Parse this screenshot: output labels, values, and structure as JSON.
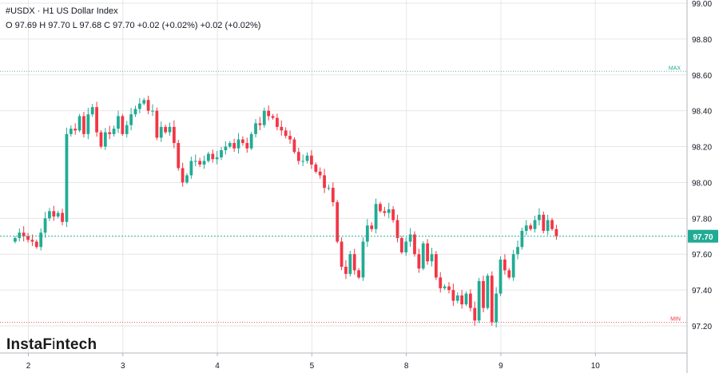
{
  "header": {
    "title": "#USDX · H1 US Dollar Index",
    "ohlc": "O 97.69 H 97.70 L 97.68 C 97.70 +0.02 (+0.02%) +0.02 (+0.02%)"
  },
  "brand": {
    "name_bold": "InstaF",
    "name_thin": "i",
    "name_rest": "ntech"
  },
  "colors": {
    "up": "#22ab94",
    "down": "#f23645",
    "grid": "#e6e6e6",
    "axis": "#b2b5be",
    "text": "#131722"
  },
  "chart_data": {
    "type": "candlestick",
    "symbol": "#USDX",
    "timeframe": "H1",
    "ylim": [
      97.12,
      99.0
    ],
    "y_ticks": [
      "99.00",
      "98.80",
      "98.60",
      "98.40",
      "98.20",
      "98.00",
      "97.80",
      "97.60",
      "97.40",
      "97.20"
    ],
    "y_tick_values": [
      99.0,
      98.8,
      98.6,
      98.4,
      98.2,
      98.0,
      97.8,
      97.6,
      97.4,
      97.2
    ],
    "x_ticks": [
      "2",
      "3",
      "4",
      "5",
      "8",
      "9",
      "10"
    ],
    "x_tick_positions": [
      2,
      3,
      4,
      5,
      6,
      7,
      8
    ],
    "x_range": [
      1.7,
      8.97
    ],
    "current_price": 97.7,
    "current_price_label": "97.70",
    "max_line": {
      "label": "MAX",
      "value": 98.62
    },
    "min_line": {
      "label": "MIN",
      "value": 97.22
    },
    "candles_per_day": 22,
    "closes": [
      97.69,
      97.72,
      97.7,
      97.68,
      97.67,
      97.64,
      97.72,
      97.8,
      97.84,
      97.81,
      97.83,
      97.78,
      98.27,
      98.3,
      98.29,
      98.37,
      98.27,
      98.38,
      98.42,
      98.28,
      98.2,
      98.28,
      98.27,
      98.3,
      98.37,
      98.27,
      98.32,
      98.38,
      98.41,
      98.44,
      98.46,
      98.4,
      98.4,
      98.25,
      98.31,
      98.28,
      98.31,
      98.22,
      98.08,
      98.0,
      98.04,
      98.12,
      98.12,
      98.1,
      98.12,
      98.16,
      98.13,
      98.14,
      98.18,
      98.2,
      98.22,
      98.19,
      98.24,
      98.22,
      98.19,
      98.27,
      98.33,
      98.32,
      98.4,
      98.37,
      98.36,
      98.31,
      98.29,
      98.26,
      98.24,
      98.17,
      98.12,
      98.12,
      98.15,
      98.1,
      98.06,
      98.04,
      97.97,
      97.97,
      97.89,
      97.67,
      97.53,
      97.49,
      97.6,
      97.51,
      97.47,
      97.67,
      97.76,
      97.74,
      97.88,
      97.84,
      97.83,
      97.85,
      97.79,
      97.69,
      97.61,
      97.67,
      97.71,
      97.6,
      97.52,
      97.66,
      97.56,
      97.6,
      97.47,
      97.41,
      97.42,
      97.4,
      97.34,
      97.37,
      97.32,
      97.38,
      97.3,
      97.23,
      97.45,
      97.3,
      97.48,
      97.22,
      97.38,
      97.57,
      97.51,
      97.47,
      97.6,
      97.64,
      97.73,
      97.76,
      97.74,
      97.79,
      97.82,
      97.73,
      97.79,
      97.74,
      97.7
    ]
  }
}
